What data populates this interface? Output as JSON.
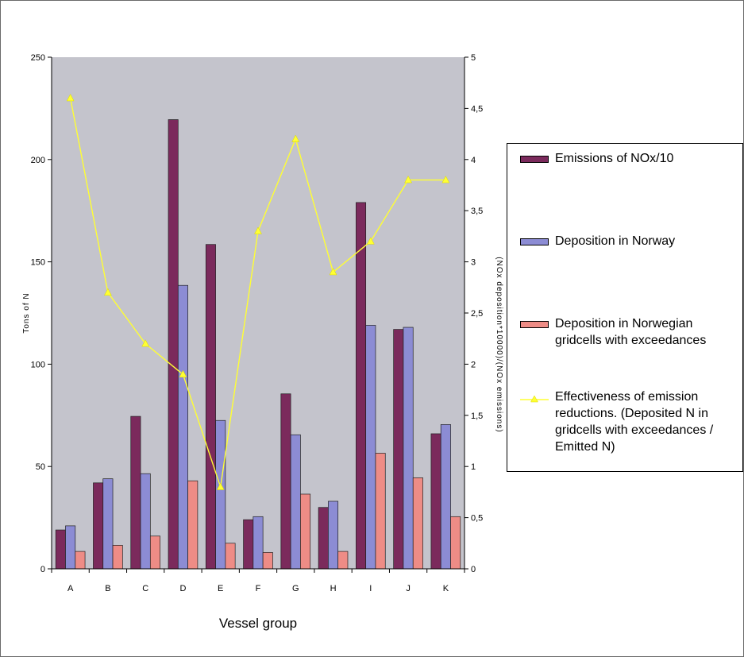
{
  "chart_data": {
    "type": "bar",
    "xlabel": "Vessel group",
    "ylabel": "Tons of N",
    "y2label": "(NOx deposition*10000)/(NOx emissions)",
    "categories": [
      "A",
      "B",
      "C",
      "D",
      "E",
      "F",
      "G",
      "H",
      "I",
      "J",
      "K"
    ],
    "ylim": [
      0,
      250
    ],
    "yticks": [
      0,
      50,
      100,
      150,
      200,
      250
    ],
    "y2lim": [
      0,
      5
    ],
    "y2ticks": [
      0,
      0.5,
      1,
      1.5,
      2,
      2.5,
      3,
      3.5,
      4,
      4.5,
      5
    ],
    "y2tick_labels": [
      "0",
      "0,5",
      "1",
      "1,5",
      "2",
      "2,5",
      "3",
      "3,5",
      "4",
      "4,5",
      "5"
    ],
    "grid": false,
    "legend_position": "right",
    "series": [
      {
        "name": "Emissions of NOx/10",
        "type": "bar",
        "axis": "left",
        "color": "#7b2a5c",
        "values": [
          19,
          42,
          74.5,
          219.5,
          158.5,
          24,
          85.5,
          30,
          179,
          117,
          66
        ]
      },
      {
        "name": "Deposition in Norway",
        "type": "bar",
        "axis": "left",
        "color": "#8c8cd4",
        "values": [
          21,
          44,
          46.5,
          138.5,
          72.5,
          25.5,
          65.5,
          33,
          119,
          118,
          70.5
        ]
      },
      {
        "name": "Deposition in Norwegian\ngridcells with exceedances",
        "type": "bar",
        "axis": "left",
        "color": "#ee8c86",
        "values": [
          8.5,
          11.5,
          16,
          43,
          12.5,
          8,
          36.5,
          8.5,
          56.5,
          44.5,
          25.5
        ]
      },
      {
        "name": "Effectiveness of emission\nreductions. (Deposited N in\ngridcells with exceedances /\nEmitted N)",
        "type": "line",
        "axis": "right",
        "color": "#ffff33",
        "values": [
          4.6,
          2.7,
          2.2,
          1.9,
          0.8,
          3.3,
          4.2,
          2.9,
          3.2,
          3.8,
          3.8
        ]
      }
    ]
  }
}
